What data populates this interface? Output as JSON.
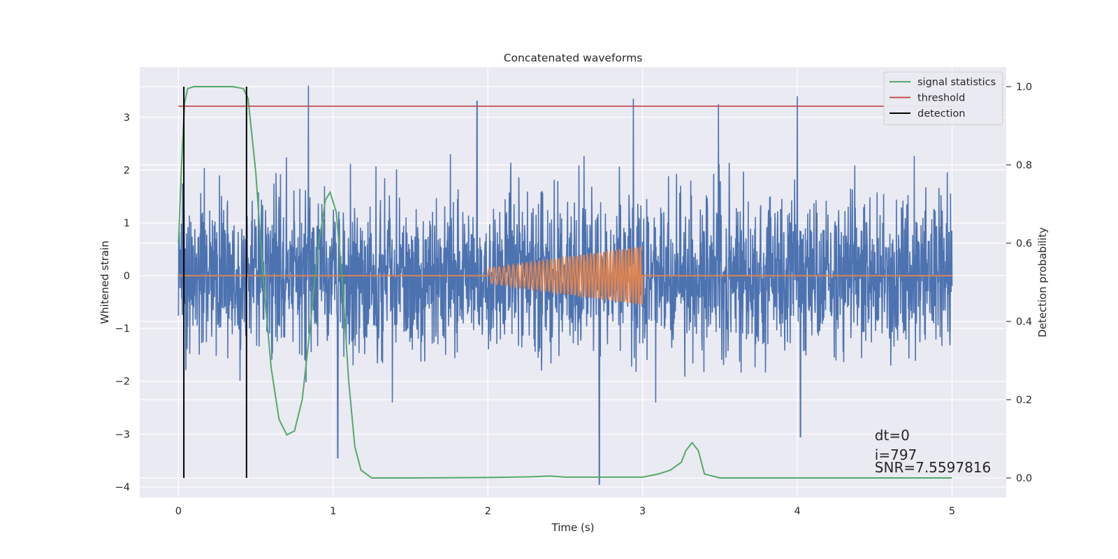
{
  "chart_data": {
    "type": "line",
    "title": "Concatenated waveforms",
    "xlabel": "Time (s)",
    "ylabel_left": "Whitened strain",
    "ylabel_right": "Detection probability",
    "xlim": [
      -0.25,
      5.35
    ],
    "ylim_left": [
      -4.2,
      3.95
    ],
    "ylim_right": [
      -0.05,
      1.05
    ],
    "x_ticks": [
      0,
      1,
      2,
      3,
      4,
      5
    ],
    "x_tick_labels": [
      "0",
      "1",
      "2",
      "3",
      "4",
      "5"
    ],
    "y_left_ticks": [
      -4,
      -3,
      -2,
      -1,
      0,
      1,
      2,
      3
    ],
    "y_left_tick_labels": [
      "−4",
      "−3",
      "−2",
      "−1",
      "0",
      "1",
      "2",
      "3"
    ],
    "y_right_ticks": [
      0.0,
      0.2,
      0.4,
      0.6,
      0.8,
      1.0
    ],
    "y_right_tick_labels": [
      "0.0",
      "0.2",
      "0.4",
      "0.6",
      "0.8",
      "1.0"
    ],
    "grid": true,
    "legend_position": "upper right",
    "legend": [
      {
        "label": "signal statistics",
        "color": "#55a868"
      },
      {
        "label": "threshold",
        "color": "#c44e52"
      },
      {
        "label": "detection",
        "color": "#000000"
      }
    ],
    "series": [
      {
        "role": "whitened strain (noise + signal)",
        "axis": "left",
        "color": "#4c72b0",
        "x_range": [
          0,
          5
        ],
        "envelope_typical": [
          -1.9,
          2.0
        ],
        "notable_peaks": [
          {
            "x": 0.84,
            "y": 3.6
          },
          {
            "x": 1.93,
            "y": 3.3
          },
          {
            "x": 2.72,
            "y": -3.95
          },
          {
            "x": 2.94,
            "y": 3.35
          },
          {
            "x": 3.49,
            "y": 3.25
          },
          {
            "x": 4.0,
            "y": 3.4
          },
          {
            "x": 1.03,
            "y": -3.45
          },
          {
            "x": 4.02,
            "y": -3.05
          }
        ]
      },
      {
        "role": "injected waveform (chirp)",
        "axis": "left",
        "color": "#dd8452",
        "x_range": [
          0,
          5
        ],
        "chirp_start": 2.0,
        "chirp_end": 3.0,
        "amplitude_start": 0.14,
        "amplitude_end": 0.55
      },
      {
        "name": "signal statistics",
        "axis": "right",
        "color": "#55a868",
        "x": [
          0,
          0.02,
          0.04,
          0.06,
          0.1,
          0.2,
          0.35,
          0.42,
          0.45,
          0.5,
          0.55,
          0.6,
          0.65,
          0.7,
          0.75,
          0.8,
          0.85,
          0.9,
          0.95,
          0.98,
          1.02,
          1.06,
          1.1,
          1.14,
          1.18,
          1.25,
          1.5,
          2.0,
          2.3,
          2.4,
          2.5,
          3.0,
          3.1,
          3.18,
          3.25,
          3.28,
          3.32,
          3.36,
          3.4,
          3.5,
          4.0,
          4.5,
          5.0
        ],
        "y": [
          0.6,
          0.8,
          0.96,
          0.995,
          1.0,
          1.0,
          1.0,
          0.995,
          0.97,
          0.78,
          0.5,
          0.28,
          0.15,
          0.11,
          0.12,
          0.2,
          0.38,
          0.58,
          0.71,
          0.73,
          0.68,
          0.5,
          0.25,
          0.08,
          0.02,
          0.0,
          0.0,
          0.001,
          0.003,
          0.005,
          0.002,
          0.002,
          0.01,
          0.02,
          0.04,
          0.07,
          0.09,
          0.07,
          0.01,
          0.0,
          0.0,
          0.0,
          0.0
        ]
      },
      {
        "name": "threshold",
        "axis": "right",
        "color": "#c44e52",
        "x": [
          0,
          5
        ],
        "y": [
          0.95,
          0.95
        ]
      },
      {
        "name": "detection",
        "axis": "right",
        "color": "#000000",
        "type": "vlines",
        "x": [
          0.035,
          0.44
        ],
        "y_range": [
          0,
          1
        ]
      }
    ],
    "annotations": [
      {
        "text": "dt=0",
        "x": 4.5,
        "y": 0.1
      },
      {
        "text": "i=797",
        "x": 4.5,
        "y": 0.05
      },
      {
        "text": "SNR=7.5597816",
        "x": 4.5,
        "y": 0.02
      }
    ]
  }
}
